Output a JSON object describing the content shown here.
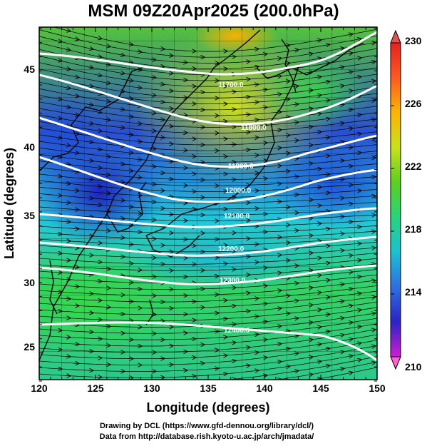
{
  "title": "MSM 09Z20Apr2025 (200.0hPa)",
  "xlabel": "Longitude (degrees)",
  "ylabel": "Latitude  (degrees)",
  "x_ticks": [
    "120",
    "125",
    "130",
    "135",
    "140",
    "145",
    "150"
  ],
  "y_ticks": [
    "25",
    "30",
    "35",
    "40",
    "45"
  ],
  "colorbar_ticks": [
    "230",
    "226",
    "222",
    "218",
    "214",
    "210"
  ],
  "contour_labels": [
    "11700.0",
    "11800.0",
    "11900.0",
    "12000.0",
    "12100.0",
    "12200.0",
    "12300.0",
    "12400.0"
  ],
  "footer": {
    "line1": "Drawing by DCL (https://www.gfd-dennou.org/library/dcl/)",
    "line2": "Data from http://database.rish.kyoto-u.ac.jp/arch/jmadata/"
  },
  "map": {
    "lon_range": [
      120,
      150
    ],
    "lat_range": [
      22.6,
      47.6
    ],
    "colorbar_range": [
      210,
      230
    ],
    "colorbar_colors": [
      "#d21bd6",
      "#2a23c8",
      "#2e6fe4",
      "#19c2d2",
      "#26d57c",
      "#5ad11c",
      "#c8e215",
      "#ffb400",
      "#ff5a1e",
      "#e82020"
    ]
  }
}
